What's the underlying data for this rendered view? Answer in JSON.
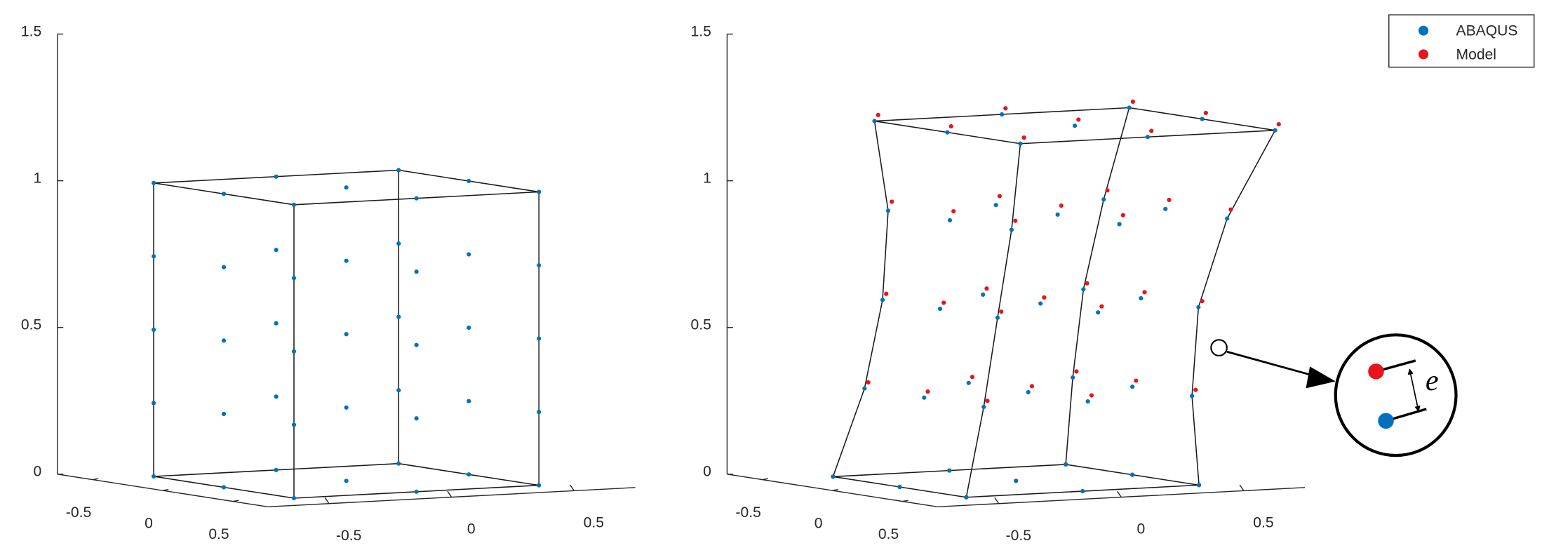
{
  "chart_data": [
    {
      "type": "scatter3d",
      "xlim": [
        -0.75,
        0.75
      ],
      "ylim": [
        -0.75,
        0.75
      ],
      "zlim": [
        0,
        1.5
      ],
      "xticks": [
        -0.5,
        0,
        0.5
      ],
      "yticks": [
        -0.5,
        0,
        0.5
      ],
      "zticks": [
        0,
        0.5,
        1,
        1.5
      ],
      "series": [
        {
          "color": "#0072bd",
          "x": [
            -0.5,
            -0.5,
            -0.5,
            0,
            0,
            0,
            0.5,
            0.5,
            0.5,
            -0.5,
            -0.5,
            -0.5,
            0,
            0,
            0,
            0.5,
            0.5,
            0.5,
            -0.5,
            -0.5,
            -0.5,
            0,
            0,
            0,
            0.5,
            0.5,
            0.5,
            -0.5,
            -0.5,
            -0.5,
            0,
            0,
            0,
            0.5,
            0.5,
            0.5,
            -0.5,
            -0.5,
            -0.5,
            0,
            0,
            0,
            0.5,
            0.5,
            0.5
          ],
          "y": [
            -0.5,
            0,
            0.5,
            -0.5,
            0,
            0.5,
            -0.5,
            0,
            0.5,
            -0.5,
            0,
            0.5,
            -0.5,
            0,
            0.5,
            -0.5,
            0,
            0.5,
            -0.5,
            0,
            0.5,
            -0.5,
            0,
            0.5,
            -0.5,
            0,
            0.5,
            -0.5,
            0,
            0.5,
            -0.5,
            0,
            0.5,
            -0.5,
            0,
            0.5,
            -0.5,
            0,
            0.5,
            -0.5,
            0,
            0.5,
            -0.5,
            0,
            0.5
          ],
          "z": [
            0,
            0,
            0,
            0,
            0,
            0,
            0,
            0,
            0,
            0.25,
            0.25,
            0.25,
            0.25,
            0.25,
            0.25,
            0.25,
            0.25,
            0.25,
            0.5,
            0.5,
            0.5,
            0.5,
            0.5,
            0.5,
            0.5,
            0.5,
            0.5,
            0.75,
            0.75,
            0.75,
            0.75,
            0.75,
            0.75,
            0.75,
            0.75,
            0.75,
            1,
            1,
            1,
            1,
            1,
            1,
            1,
            1,
            1
          ]
        }
      ]
    },
    {
      "type": "scatter3d",
      "xlim": [
        -0.75,
        0.75
      ],
      "ylim": [
        -0.75,
        0.75
      ],
      "zlim": [
        0,
        1.5
      ],
      "xticks": [
        -0.5,
        0,
        0.5
      ],
      "yticks": [
        -0.5,
        0,
        0.5
      ],
      "zticks": [
        0,
        0.5,
        1,
        1.5
      ],
      "legend": "northeast",
      "annotation": "e",
      "series": [
        {
          "name": "ABAQUS",
          "color": "#0072bd",
          "x": [
            -0.475,
            -0.475,
            -0.475,
            0,
            0,
            0,
            0.475,
            0.475,
            0.475,
            -0.375,
            -0.375,
            -0.375,
            0.05,
            0.05,
            0.05,
            0.475,
            0.475,
            0.475,
            -0.31,
            -0.31,
            -0.31,
            0.1,
            0.1,
            0.1,
            0.51,
            0.51,
            0.51,
            -0.27,
            -0.27,
            -0.27,
            0.17,
            0.17,
            0.17,
            0.61,
            0.61,
            0.61,
            -0.28,
            -0.28,
            -0.28,
            0.24,
            0.24,
            0.24,
            0.76,
            0.76,
            0.76
          ],
          "y": [
            -0.475,
            0,
            0.475,
            -0.475,
            0,
            0.475,
            -0.475,
            0,
            0.475,
            -0.425,
            0,
            0.425,
            -0.425,
            0,
            0.425,
            -0.425,
            0,
            0.425,
            -0.41,
            0,
            0.41,
            -0.41,
            0,
            0.41,
            -0.41,
            0,
            0.41,
            -0.44,
            0,
            0.44,
            -0.44,
            0,
            0.44,
            -0.44,
            0,
            0.44,
            -0.52,
            0,
            0.52,
            -0.52,
            0,
            0.52,
            -0.52,
            0,
            0.52
          ],
          "z": [
            0,
            0,
            0,
            0,
            0,
            0,
            0,
            0,
            0,
            0.3,
            0.3,
            0.3,
            0.3,
            0.3,
            0.3,
            0.3,
            0.3,
            0.3,
            0.6,
            0.6,
            0.6,
            0.6,
            0.6,
            0.6,
            0.6,
            0.6,
            0.6,
            0.9,
            0.9,
            0.9,
            0.9,
            0.9,
            0.9,
            0.9,
            0.9,
            0.9,
            1.2,
            1.2,
            1.2,
            1.2,
            1.2,
            1.2,
            1.2,
            1.2,
            1.2
          ]
        },
        {
          "name": "Model",
          "color": "#e8141a",
          "x": [
            -0.475,
            -0.475,
            -0.475,
            0,
            0,
            0,
            0.475,
            0.475,
            0.475,
            -0.36,
            -0.36,
            -0.36,
            0.065,
            0.065,
            0.065,
            0.49,
            0.49,
            0.49,
            -0.295,
            -0.295,
            -0.295,
            0.115,
            0.115,
            0.115,
            0.525,
            0.525,
            0.525,
            -0.255,
            -0.255,
            -0.255,
            0.185,
            0.185,
            0.185,
            0.625,
            0.625,
            0.625,
            -0.265,
            -0.265,
            -0.265,
            0.255,
            0.255,
            0.255,
            0.775,
            0.775,
            0.775
          ],
          "y": [
            -0.475,
            0,
            0.475,
            -0.475,
            0,
            0.475,
            -0.475,
            0,
            0.475,
            -0.425,
            0,
            0.425,
            -0.425,
            0,
            0.425,
            -0.425,
            0,
            0.425,
            -0.41,
            0,
            0.41,
            -0.41,
            0,
            0.41,
            -0.41,
            0,
            0.41,
            -0.44,
            0,
            0.44,
            -0.44,
            0,
            0.44,
            -0.44,
            0,
            0.44,
            -0.52,
            0,
            0.52,
            -0.52,
            0,
            0.52,
            -0.52,
            0,
            0.52
          ],
          "z": [
            0,
            0,
            0,
            0,
            0,
            0,
            0,
            0,
            0,
            0.32,
            0.32,
            0.32,
            0.32,
            0.32,
            0.32,
            0.32,
            0.32,
            0.32,
            0.62,
            0.62,
            0.62,
            0.62,
            0.62,
            0.62,
            0.62,
            0.62,
            0.62,
            0.93,
            0.93,
            0.93,
            0.93,
            0.93,
            0.93,
            0.93,
            0.93,
            0.93,
            1.22,
            1.22,
            1.22,
            1.22,
            1.22,
            1.22,
            1.22,
            1.22,
            1.22
          ]
        }
      ]
    }
  ]
}
